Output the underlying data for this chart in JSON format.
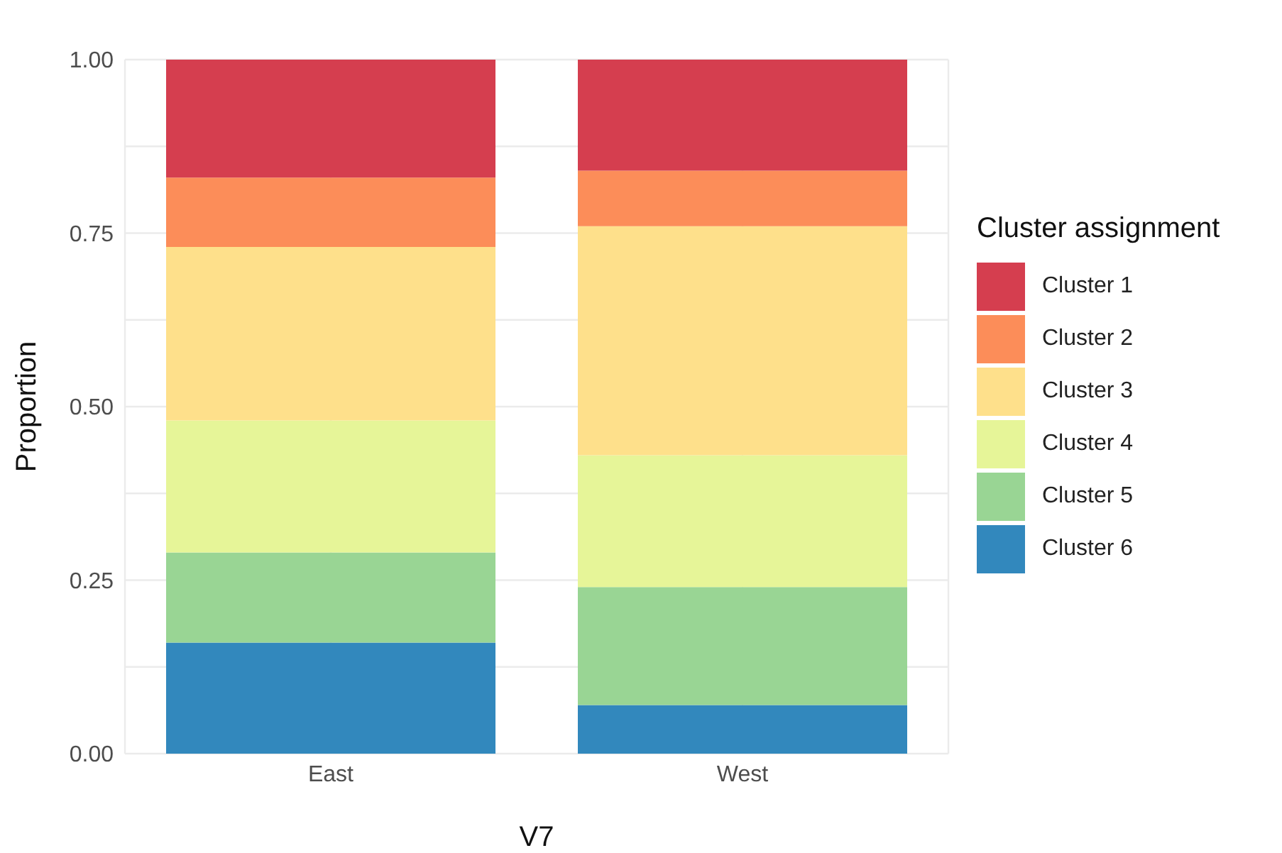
{
  "chart_data": {
    "type": "bar",
    "stacked": true,
    "xlabel": "V7",
    "ylabel": "Proportion",
    "legend_title": "Cluster assignment",
    "legend": "right",
    "grid": true,
    "categories": [
      "East",
      "West"
    ],
    "ylim": [
      0,
      1
    ],
    "yticks": [
      {
        "value": 0,
        "label": "0.00"
      },
      {
        "value": 0.25,
        "label": "0.25"
      },
      {
        "value": 0.5,
        "label": "0.50"
      },
      {
        "value": 0.75,
        "label": "0.75"
      },
      {
        "value": 1,
        "label": "1.00"
      }
    ],
    "series": [
      {
        "name": "Cluster 6",
        "color": "#3288bd",
        "values": [
          0.16,
          0.07
        ]
      },
      {
        "name": "Cluster 5",
        "color": "#99d594",
        "values": [
          0.13,
          0.17
        ]
      },
      {
        "name": "Cluster 4",
        "color": "#e6f598",
        "values": [
          0.19,
          0.19
        ]
      },
      {
        "name": "Cluster 3",
        "color": "#fee08b",
        "values": [
          0.25,
          0.33
        ]
      },
      {
        "name": "Cluster 2",
        "color": "#fc8d59",
        "values": [
          0.1,
          0.08
        ]
      },
      {
        "name": "Cluster 1",
        "color": "#d53e4f",
        "values": [
          0.17,
          0.16
        ]
      }
    ]
  }
}
